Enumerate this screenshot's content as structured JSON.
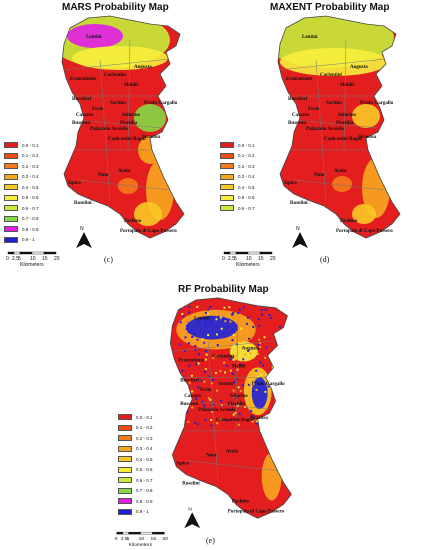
{
  "panels": [
    {
      "id": "c",
      "title": "MARS Probability Map",
      "caption": "(c)",
      "legend": [
        {
          "label": "0.0 - 0.1",
          "color": "#e41e1e"
        },
        {
          "label": "0.1 - 0.2",
          "color": "#f04a18"
        },
        {
          "label": "0.2 - 0.3",
          "color": "#f47a1c"
        },
        {
          "label": "0.3 - 0.4",
          "color": "#f7a61e"
        },
        {
          "label": "0.4 - 0.5",
          "color": "#f9c825"
        },
        {
          "label": "0.5 - 0.6",
          "color": "#f7ee3c"
        },
        {
          "label": "0.6 - 0.7",
          "color": "#c7ec3a"
        },
        {
          "label": "0.7 - 0.8",
          "color": "#84d846"
        },
        {
          "label": "0.8 - 0.9",
          "color": "#e01ee6"
        },
        {
          "label": "0.9 - 1",
          "color": "#2020d8"
        }
      ]
    },
    {
      "id": "d",
      "title": "MAXENT Probability Map",
      "caption": "(d)",
      "legend": [
        {
          "label": "0.0 - 0.1",
          "color": "#e41e1e"
        },
        {
          "label": "0.1 - 0.2",
          "color": "#f04a18"
        },
        {
          "label": "0.2 - 0.3",
          "color": "#f47a1c"
        },
        {
          "label": "0.3 - 0.4",
          "color": "#f7a61e"
        },
        {
          "label": "0.4 - 0.5",
          "color": "#f9c825"
        },
        {
          "label": "0.5 - 0.6",
          "color": "#f7ee3c"
        },
        {
          "label": "0.6 - 0.7",
          "color": "#c7ec3a"
        }
      ]
    },
    {
      "id": "e",
      "title": "RF Probability Map",
      "caption": "(e)",
      "legend": [
        {
          "label": "0.0 - 0.1",
          "color": "#e41e1e"
        },
        {
          "label": "0.1 - 0.2",
          "color": "#f04a18"
        },
        {
          "label": "0.2 - 0.3",
          "color": "#f47a1c"
        },
        {
          "label": "0.3 - 0.4",
          "color": "#f7a61e"
        },
        {
          "label": "0.4 - 0.5",
          "color": "#f9c825"
        },
        {
          "label": "0.5 - 0.6",
          "color": "#f7ee3c"
        },
        {
          "label": "0.6 - 0.7",
          "color": "#c7ec3a"
        },
        {
          "label": "0.7 - 0.8",
          "color": "#84d846"
        },
        {
          "label": "0.8 - 0.9",
          "color": "#e01ee6"
        },
        {
          "label": "0.9 - 1",
          "color": "#2020d8"
        }
      ]
    }
  ],
  "places": {
    "lentini": "Lentini",
    "augusta": "Augusta",
    "carlentini": "Carlentini",
    "francofonte": "Francofonte",
    "melilli": "Melilli",
    "buccheri": "Buccheri",
    "sortino": "Sortino",
    "priolo": "Priolo Gargallo",
    "ferla": "Ferla",
    "cassaro": "Cassaro",
    "buscemi": "Buscemi",
    "solarino": "Solarino",
    "floridia": "Floridia",
    "palazzolo": "Palazzolo Acreide",
    "canicattini": "Canicattini Bagni",
    "siracusa": "Siracusa",
    "noto": "Noto",
    "avola": "Avola",
    "rosolini": "Rosolini",
    "ispica": "Ispica",
    "pachino": "Pachino",
    "portopalo": "Portopalo di Capo Passero"
  },
  "north_label": "N",
  "scale": {
    "ticks": [
      "0",
      "2.5",
      "5",
      "10",
      "15",
      "20"
    ],
    "unit": "Kilometers"
  }
}
